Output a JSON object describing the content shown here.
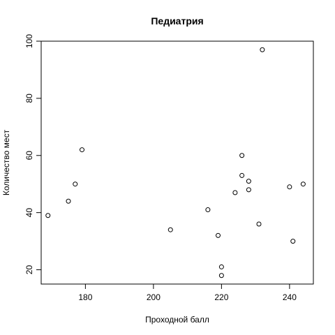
{
  "chart_data": {
    "type": "scatter",
    "title": "Педиатрия",
    "xlabel": "Проходной балл",
    "ylabel": "Количество мест",
    "xlim": [
      167,
      247
    ],
    "ylim": [
      15,
      100
    ],
    "xticks": [
      180,
      200,
      220,
      240
    ],
    "yticks": [
      20,
      40,
      60,
      80,
      100
    ],
    "grid": false,
    "points": [
      {
        "x": 169,
        "y": 39
      },
      {
        "x": 175,
        "y": 44
      },
      {
        "x": 177,
        "y": 50
      },
      {
        "x": 179,
        "y": 62
      },
      {
        "x": 205,
        "y": 34
      },
      {
        "x": 216,
        "y": 41
      },
      {
        "x": 219,
        "y": 32
      },
      {
        "x": 220,
        "y": 21
      },
      {
        "x": 220,
        "y": 18
      },
      {
        "x": 224,
        "y": 47
      },
      {
        "x": 226,
        "y": 60
      },
      {
        "x": 226,
        "y": 53
      },
      {
        "x": 228,
        "y": 51
      },
      {
        "x": 228,
        "y": 48
      },
      {
        "x": 231,
        "y": 36
      },
      {
        "x": 232,
        "y": 97
      },
      {
        "x": 240,
        "y": 49
      },
      {
        "x": 241,
        "y": 30
      },
      {
        "x": 244,
        "y": 50
      }
    ]
  }
}
